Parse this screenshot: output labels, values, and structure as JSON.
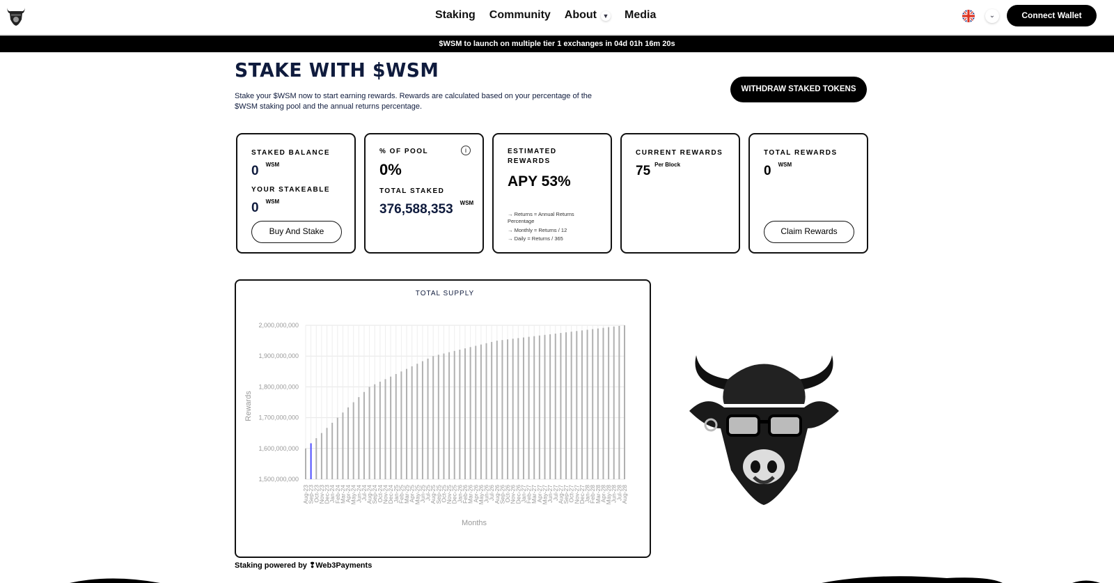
{
  "header": {
    "nav": [
      "Staking",
      "Community",
      "About",
      "Media"
    ],
    "connect_label": "Connect Wallet",
    "language": "uk-flag-icon"
  },
  "banner": {
    "text": "$WSM to launch on multiple tier 1 exchanges in 04d 01h 16m 20s"
  },
  "page": {
    "title": "STAKE WITH $WSM",
    "description": "Stake your $WSM now to start earning rewards. Rewards are calculated based on your percentage of the $WSM staking pool and the annual returns percentage.",
    "withdraw_label": "WITHDRAW STAKED TOKENS"
  },
  "cards": {
    "staked": {
      "label": "STAKED BALANCE",
      "value": "0",
      "unit": "WSM",
      "stakeable_label": "YOUR STAKEABLE",
      "stakeable_value": "0",
      "stakeable_unit": "WSM",
      "button": "Buy And Stake"
    },
    "pool": {
      "label": "% OF POOL",
      "value": "0%",
      "total_label": "TOTAL STAKED",
      "total_value": "376,588,353",
      "total_unit": "WSM"
    },
    "estimated": {
      "label": "ESTIMATED REWARDS",
      "value": "APY 53%",
      "notes": [
        "→ Returns = Annual Returns Percentage",
        "→ Monthly = Returns / 12",
        "→ Daily = Returns / 365"
      ]
    },
    "current": {
      "label": "CURRENT REWARDS",
      "value": "75",
      "unit": "Per Block"
    },
    "total": {
      "label": "TOTAL REWARDS",
      "value": "0",
      "unit": "WSM",
      "button": "Claim Rewards"
    }
  },
  "footer": {
    "powered_prefix": "Staking powered by",
    "powered_brand": "Web3Payments"
  },
  "colors": {
    "bar": "#b0b0b0",
    "highlight": "#4d4dff",
    "navy": "#0f1b3d"
  },
  "chart_data": {
    "type": "bar",
    "title": "TOTAL SUPPLY",
    "xlabel": "Months",
    "ylabel": "Rewards",
    "ylim": [
      1500000000,
      2000000000
    ],
    "yticks": [
      "1,500,000,000",
      "1,600,000,000",
      "1,700,000,000",
      "1,800,000,000",
      "1,900,000,000",
      "2,000,000,000"
    ],
    "grid": true,
    "highlighted_category": "Sep-23",
    "categories": [
      "Aug-23",
      "Sep-23",
      "Oct-23",
      "Nov-23",
      "Dec-23",
      "Jan-24",
      "Feb-24",
      "Mar-24",
      "Apr-24",
      "May-24",
      "Jun-24",
      "Jul-24",
      "Aug-24",
      "Sep-24",
      "Oct-24",
      "Nov-24",
      "Dec-24",
      "Jan-25",
      "Feb-25",
      "Mar-25",
      "Apr-25",
      "May-25",
      "Jun-25",
      "Jul-25",
      "Aug-25",
      "Sep-25",
      "Oct-25",
      "Nov-25",
      "Dec-25",
      "Jan-26",
      "Feb-26",
      "Mar-26",
      "Apr-26",
      "May-26",
      "Jun-26",
      "Jul-26",
      "Aug-26",
      "Sep-26",
      "Oct-26",
      "Nov-26",
      "Dec-26",
      "Jan-27",
      "Feb-27",
      "Mar-27",
      "Apr-27",
      "May-27",
      "Jun-27",
      "Jul-27",
      "Aug-27",
      "Sep-27",
      "Oct-27",
      "Nov-27",
      "Dec-27",
      "Jan-28",
      "Feb-28",
      "Mar-28",
      "Apr-28",
      "May-28",
      "Jun-28",
      "Jul-28",
      "Aug-28"
    ],
    "values": [
      1600000000,
      1616700000,
      1633300000,
      1650000000,
      1666700000,
      1683300000,
      1700000000,
      1716700000,
      1733300000,
      1750000000,
      1766700000,
      1783300000,
      1800000000,
      1808300000,
      1816700000,
      1825000000,
      1833300000,
      1841700000,
      1850000000,
      1858300000,
      1866700000,
      1875000000,
      1883300000,
      1891700000,
      1900000000,
      1904200000,
      1908300000,
      1912500000,
      1916700000,
      1920800000,
      1925000000,
      1929200000,
      1933300000,
      1937500000,
      1941700000,
      1945800000,
      1950000000,
      1952100000,
      1954200000,
      1956300000,
      1958300000,
      1960400000,
      1962500000,
      1964600000,
      1966700000,
      1968800000,
      1970800000,
      1972900000,
      1975000000,
      1977100000,
      1979200000,
      1981300000,
      1983300000,
      1985400000,
      1987500000,
      1989600000,
      1991700000,
      1993800000,
      1995800000,
      1997900000,
      2000000000
    ]
  }
}
